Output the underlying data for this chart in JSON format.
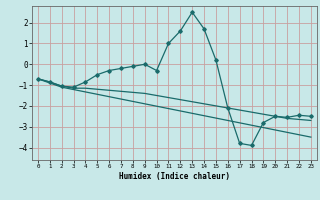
{
  "xlabel": "Humidex (Indice chaleur)",
  "background_color": "#c8e8e8",
  "grid_color": "#c8a0a0",
  "line_color": "#1a6b6b",
  "xlim": [
    -0.5,
    23.5
  ],
  "ylim": [
    -4.6,
    2.8
  ],
  "yticks": [
    -4,
    -3,
    -2,
    -1,
    0,
    1,
    2
  ],
  "xticks": [
    0,
    1,
    2,
    3,
    4,
    5,
    6,
    7,
    8,
    9,
    10,
    11,
    12,
    13,
    14,
    15,
    16,
    17,
    18,
    19,
    20,
    21,
    22,
    23
  ],
  "line1_x": [
    0,
    1,
    2,
    3,
    4,
    5,
    6,
    7,
    8,
    9,
    10,
    11,
    12,
    13,
    14,
    15,
    16,
    17,
    18,
    19,
    20,
    21,
    22,
    23
  ],
  "line1_y": [
    -0.7,
    -0.85,
    -1.05,
    -1.1,
    -0.85,
    -0.5,
    -0.3,
    -0.2,
    -0.1,
    0.0,
    -0.3,
    1.0,
    1.6,
    2.5,
    1.7,
    0.2,
    -2.1,
    -3.8,
    -3.9,
    -2.8,
    -2.5,
    -2.55,
    -2.45,
    -2.5
  ],
  "line2_x": [
    0,
    2,
    23
  ],
  "line2_y": [
    -0.7,
    -1.1,
    -3.5
  ],
  "line3_x": [
    0,
    1,
    2,
    3,
    4,
    5,
    6,
    7,
    8,
    9,
    10,
    11,
    12,
    13,
    14,
    15,
    16,
    17,
    18,
    19,
    20,
    21,
    22,
    23
  ],
  "line3_y": [
    -0.7,
    -0.85,
    -1.05,
    -1.15,
    -1.15,
    -1.2,
    -1.25,
    -1.3,
    -1.35,
    -1.4,
    -1.5,
    -1.6,
    -1.7,
    -1.8,
    -1.9,
    -2.0,
    -2.1,
    -2.2,
    -2.3,
    -2.4,
    -2.5,
    -2.6,
    -2.65,
    -2.7
  ]
}
